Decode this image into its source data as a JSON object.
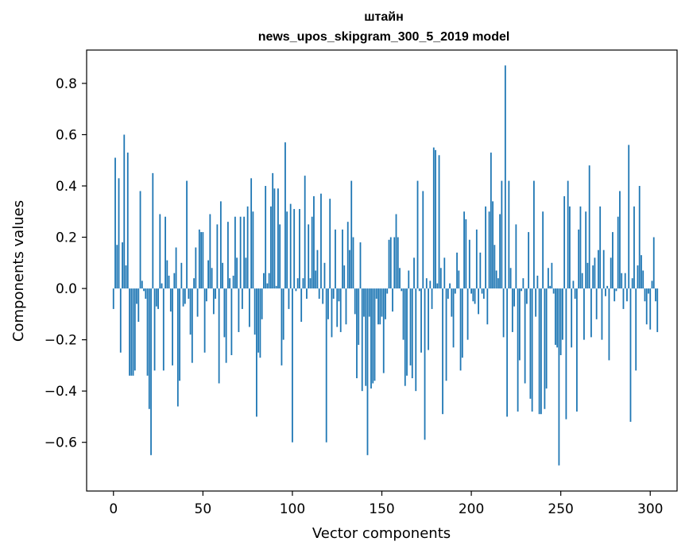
{
  "chart_data": {
    "type": "bar",
    "title": [
      "штайн",
      "news_upos_skipgram_300_5_2019 model"
    ],
    "xlabel": "Vector components",
    "ylabel": "Components values",
    "xlim": [
      -15,
      315
    ],
    "ylim": [
      -0.79,
      0.93
    ],
    "xticks": [
      0,
      50,
      100,
      150,
      200,
      250,
      300
    ],
    "xtick_labels": [
      "0",
      "50",
      "100",
      "150",
      "200",
      "250",
      "300"
    ],
    "yticks": [
      -0.6,
      -0.4,
      -0.2,
      0.0,
      0.2,
      0.4,
      0.6,
      0.8
    ],
    "ytick_labels": [
      "−0.6",
      "−0.4",
      "−0.2",
      "0.0",
      "0.2",
      "0.4",
      "0.6",
      "0.8"
    ],
    "color": "#1f77b4",
    "values": [
      -0.08,
      0.51,
      0.17,
      0.43,
      -0.25,
      0.18,
      0.6,
      0.09,
      0.53,
      -0.34,
      -0.34,
      -0.34,
      -0.32,
      -0.06,
      -0.13,
      0.38,
      0.03,
      -0.01,
      -0.04,
      -0.34,
      -0.47,
      -0.65,
      0.45,
      -0.32,
      -0.07,
      -0.08,
      0.29,
      0.02,
      -0.32,
      0.28,
      0.11,
      0.05,
      -0.09,
      -0.3,
      0.06,
      0.16,
      -0.46,
      -0.36,
      0.1,
      -0.07,
      -0.06,
      0.42,
      -0.04,
      -0.18,
      -0.29,
      0.04,
      0.16,
      -0.11,
      0.23,
      0.22,
      0.22,
      -0.25,
      -0.05,
      0.11,
      0.29,
      0.08,
      -0.1,
      -0.04,
      0.25,
      -0.37,
      0.34,
      0.1,
      -0.19,
      -0.29,
      0.26,
      0.04,
      -0.26,
      0.05,
      0.28,
      0.12,
      -0.17,
      0.28,
      -0.08,
      0.28,
      0.12,
      0.32,
      -0.15,
      0.43,
      0.3,
      -0.18,
      -0.5,
      -0.25,
      -0.27,
      -0.12,
      0.06,
      0.4,
      0.02,
      0.06,
      0.32,
      0.45,
      0.39,
      0.01,
      0.39,
      0.25,
      -0.3,
      -0.2,
      0.57,
      0.3,
      -0.08,
      0.33,
      -0.6,
      0.31,
      -0.01,
      0.04,
      0.31,
      -0.13,
      0.04,
      0.44,
      -0.04,
      0.25,
      0.04,
      0.28,
      0.36,
      0.07,
      0.15,
      -0.04,
      0.37,
      -0.06,
      0.1,
      -0.6,
      -0.12,
      0.35,
      -0.19,
      -0.04,
      0.23,
      -0.15,
      -0.05,
      -0.17,
      0.23,
      0.09,
      -0.14,
      0.26,
      0.15,
      0.42,
      0.2,
      -0.1,
      -0.35,
      -0.22,
      0.18,
      -0.4,
      -0.11,
      -0.38,
      -0.65,
      -0.11,
      -0.39,
      -0.37,
      -0.36,
      -0.04,
      -0.14,
      -0.14,
      -0.11,
      -0.33,
      -0.12,
      -0.02,
      0.19,
      0.2,
      -0.09,
      0.2,
      0.29,
      0.2,
      0.08,
      -0.01,
      -0.2,
      -0.38,
      -0.34,
      0.07,
      -0.3,
      -0.35,
      0.12,
      -0.4,
      0.42,
      -0.01,
      -0.25,
      0.38,
      -0.59,
      0.04,
      -0.24,
      0.03,
      -0.08,
      0.55,
      0.54,
      0.02,
      0.52,
      0.08,
      -0.49,
      0.12,
      -0.36,
      -0.04,
      0.02,
      -0.11,
      -0.23,
      -0.02,
      0.14,
      0.07,
      -0.32,
      -0.27,
      0.3,
      0.27,
      -0.2,
      0.19,
      -0.02,
      -0.05,
      -0.06,
      0.23,
      -0.1,
      0.14,
      -0.02,
      -0.04,
      0.32,
      -0.14,
      0.3,
      0.53,
      0.34,
      0.17,
      0.07,
      0.04,
      0.29,
      0.42,
      -0.19,
      0.87,
      -0.5,
      0.42,
      0.08,
      -0.17,
      -0.07,
      0.25,
      -0.48,
      -0.28,
      -0.01,
      0.04,
      -0.37,
      -0.06,
      0.22,
      -0.43,
      -0.48,
      0.42,
      -0.11,
      0.05,
      -0.49,
      -0.49,
      0.3,
      -0.47,
      -0.39,
      0.08,
      0.01,
      0.1,
      -0.02,
      -0.22,
      -0.23,
      -0.69,
      -0.26,
      -0.2,
      0.36,
      -0.51,
      0.42,
      0.32,
      -0.23,
      0.03,
      -0.04,
      -0.48,
      0.23,
      0.32,
      0.06,
      -0.2,
      0.3,
      0.1,
      0.48,
      -0.19,
      0.09,
      0.12,
      -0.12,
      0.15,
      0.32,
      -0.2,
      0.15,
      -0.03,
      0.01,
      -0.28,
      0.12,
      0.22,
      -0.05,
      -0.01,
      0.28,
      0.38,
      0.06,
      -0.08,
      0.06,
      -0.05,
      0.56,
      -0.52,
      0.04,
      0.32,
      -0.32,
      0.09,
      0.4,
      0.13,
      0.07,
      -0.05,
      -0.14,
      -0.02,
      -0.16,
      0.03,
      0.2,
      -0.05,
      -0.17
    ]
  }
}
